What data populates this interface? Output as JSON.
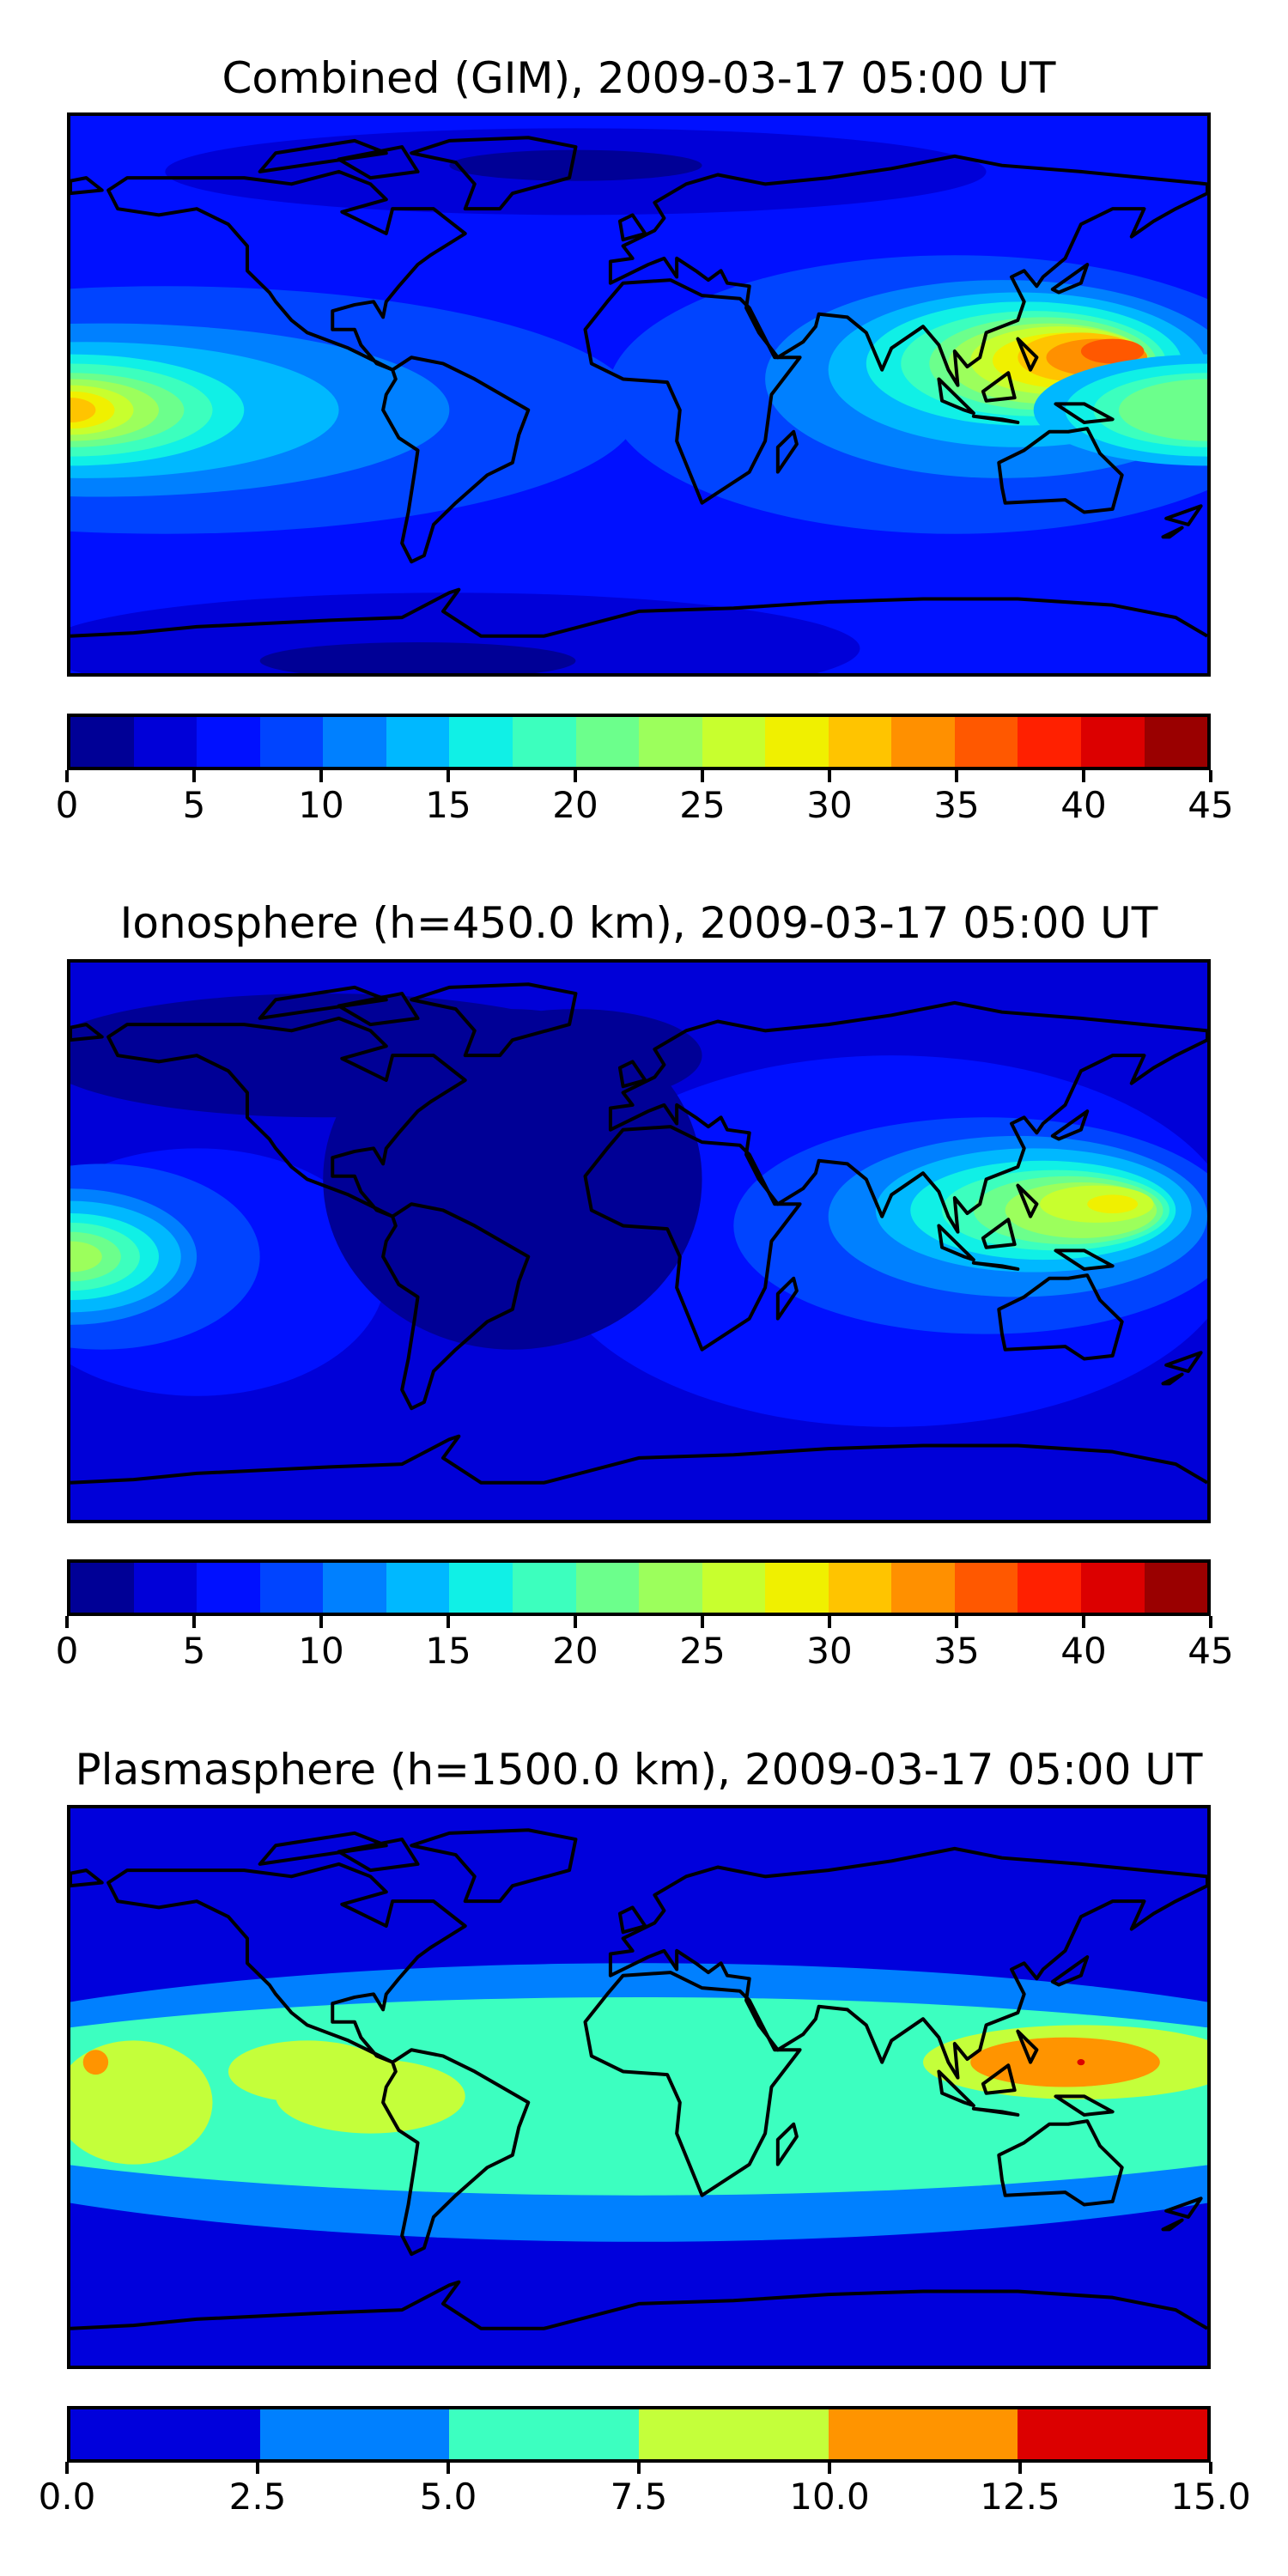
{
  "chart_data": [
    {
      "type": "heatmap",
      "title": "Combined (GIM), 2009-03-17 05:00 UT",
      "xlabel": "",
      "ylabel": "",
      "xlim": [
        -180,
        180
      ],
      "ylim": [
        -90,
        90
      ],
      "colorbar": {
        "range": [
          0,
          45
        ],
        "step": 2.5,
        "ticks": [
          0,
          5,
          10,
          15,
          20,
          25,
          30,
          35,
          40,
          45
        ],
        "tick_labels": [
          "0",
          "5",
          "10",
          "15",
          "20",
          "25",
          "30",
          "35",
          "40",
          "45"
        ],
        "colors": [
          "#000096",
          "#0000d8",
          "#0010ff",
          "#0044ff",
          "#0080ff",
          "#00b8ff",
          "#10f0e6",
          "#3cffbe",
          "#6cff8c",
          "#9cff5c",
          "#c8ff2e",
          "#f0f000",
          "#ffc400",
          "#ff9000",
          "#ff5800",
          "#ff2000",
          "#dc0000",
          "#9a0000"
        ]
      },
      "features": {
        "max_region": "Southeast Asia / western Pacific (~35-40)",
        "secondary_max": "central Pacific date line (~27-30)"
      }
    },
    {
      "type": "heatmap",
      "title": "Ionosphere  (h=450.0 km), 2009-03-17 05:00 UT",
      "xlabel": "",
      "ylabel": "",
      "xlim": [
        -180,
        180
      ],
      "ylim": [
        -90,
        90
      ],
      "colorbar": {
        "range": [
          0,
          45
        ],
        "step": 2.5,
        "ticks": [
          0,
          5,
          10,
          15,
          20,
          25,
          30,
          35,
          40,
          45
        ],
        "tick_labels": [
          "0",
          "5",
          "10",
          "15",
          "20",
          "25",
          "30",
          "35",
          "40",
          "45"
        ],
        "colors": [
          "#000096",
          "#0000d8",
          "#0010ff",
          "#0044ff",
          "#0080ff",
          "#00b8ff",
          "#10f0e6",
          "#3cffbe",
          "#6cff8c",
          "#9cff5c",
          "#c8ff2e",
          "#f0f000",
          "#ffc400",
          "#ff9000",
          "#ff5800",
          "#ff2000",
          "#dc0000",
          "#9a0000"
        ]
      },
      "features": {
        "max_region": "western Pacific (~27-30)",
        "secondary_max": "central Pacific date line (~22-25)"
      }
    },
    {
      "type": "heatmap",
      "title": "Plasmasphere (h=1500.0 km), 2009-03-17 05:00 UT",
      "xlabel": "",
      "ylabel": "",
      "xlim": [
        -180,
        180
      ],
      "ylim": [
        -90,
        90
      ],
      "colorbar": {
        "range": [
          0,
          15
        ],
        "step": 2.5,
        "ticks": [
          0,
          2.5,
          5,
          7.5,
          10,
          12.5,
          15
        ],
        "tick_labels": [
          "0.0",
          "2.5",
          "5.0",
          "7.5",
          "10.0",
          "12.5",
          "15.0"
        ],
        "colors": [
          "#0000dc",
          "#0080ff",
          "#3cffc0",
          "#c4ff3a",
          "#ff9400",
          "#dc0000"
        ]
      },
      "features": {
        "max_region": "western Pacific (~10-12.5)",
        "secondary_max": "central Pacific (~10-12.5)"
      }
    }
  ]
}
